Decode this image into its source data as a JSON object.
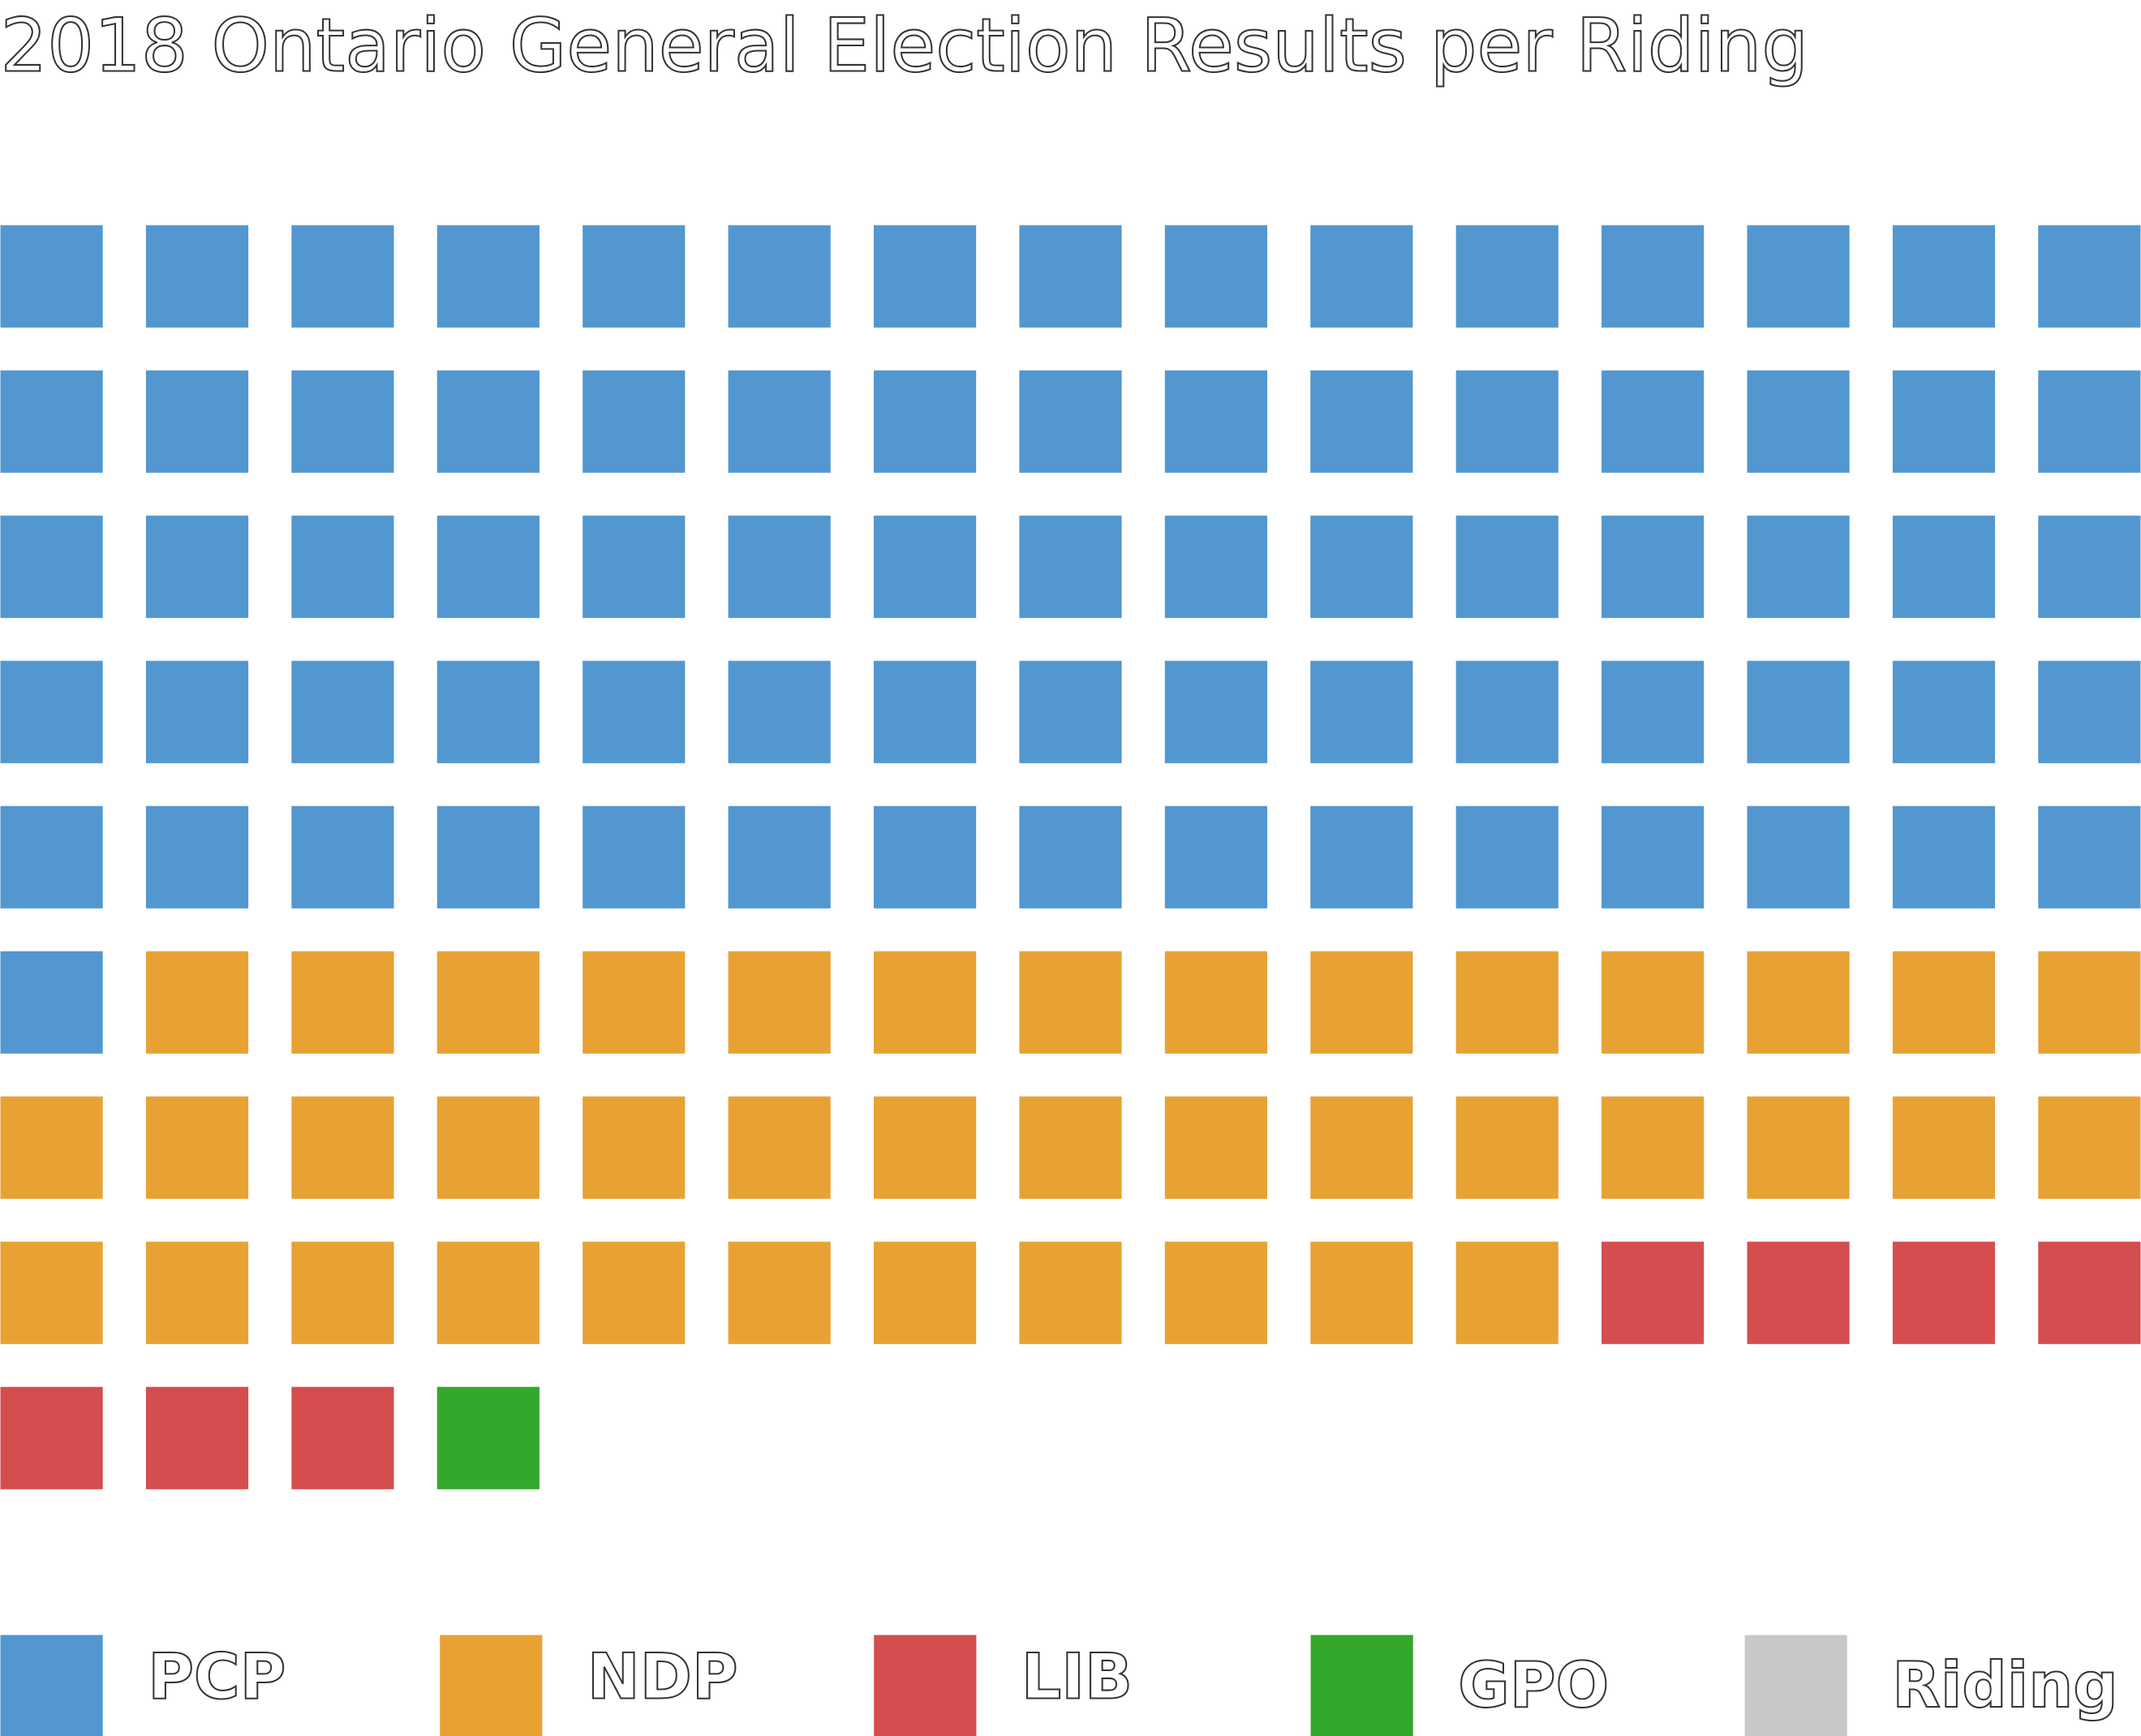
{
  "chart_data": {
    "type": "waffle",
    "title": "2018 Ontario General Election Results per Riding",
    "series": [
      {
        "name": "PCP",
        "color": "#5297cf",
        "value": 76
      },
      {
        "name": "NDP",
        "color": "#e8a234",
        "value": 40
      },
      {
        "name": "LIB",
        "color": "#d44d4f",
        "value": 7
      },
      {
        "name": "GPO",
        "color": "#33a82a",
        "value": 1
      },
      {
        "name": "Riding",
        "color": "#c8c8c8"
      }
    ]
  }
}
